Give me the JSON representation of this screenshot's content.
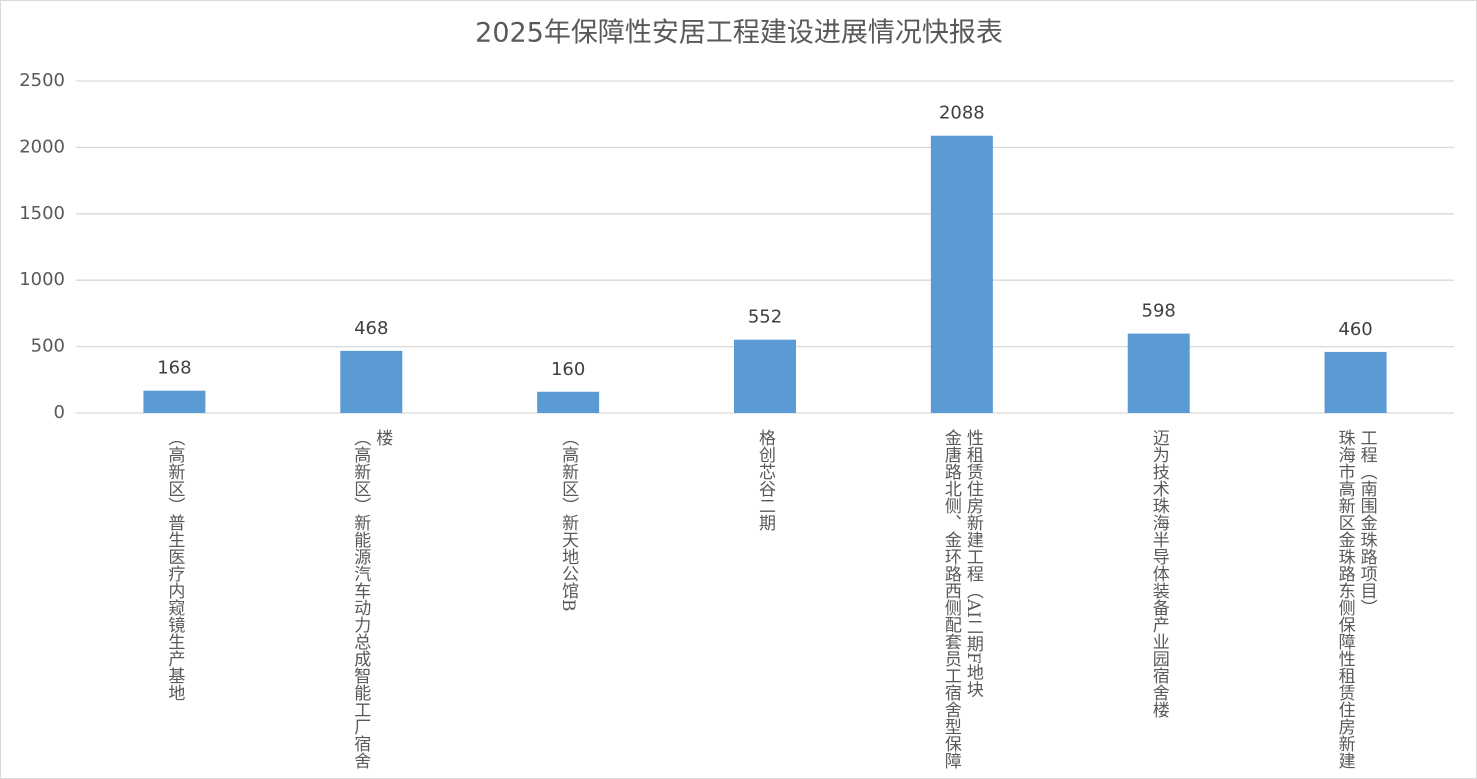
{
  "chart_data": {
    "type": "bar",
    "title": "2025年保障性安居工程建设进展情况快报表",
    "categories": [
      "（高新区）普生医疗内窥镜生产基地",
      "（高新区）新能源汽车动力总成智能工厂宿舍楼",
      "（高新区）新天地公馆B",
      "格创芯谷二期",
      "金唐路北侧、金环路西侧配套员工宿舍型保障性租赁住房新建工程（AI二期F地块",
      "迈为技术珠海半导体装备产业园宿舍楼",
      "珠海市高新区金珠路东侧保障性租赁住房新建工程（南围金珠路项目）"
    ],
    "values": [
      168,
      468,
      160,
      552,
      2088,
      598,
      460
    ],
    "color": "#5b9bd5",
    "ylim": [
      0,
      2500
    ],
    "yticks": [
      0,
      500,
      1000,
      1500,
      2000,
      2500
    ],
    "grid": true
  }
}
